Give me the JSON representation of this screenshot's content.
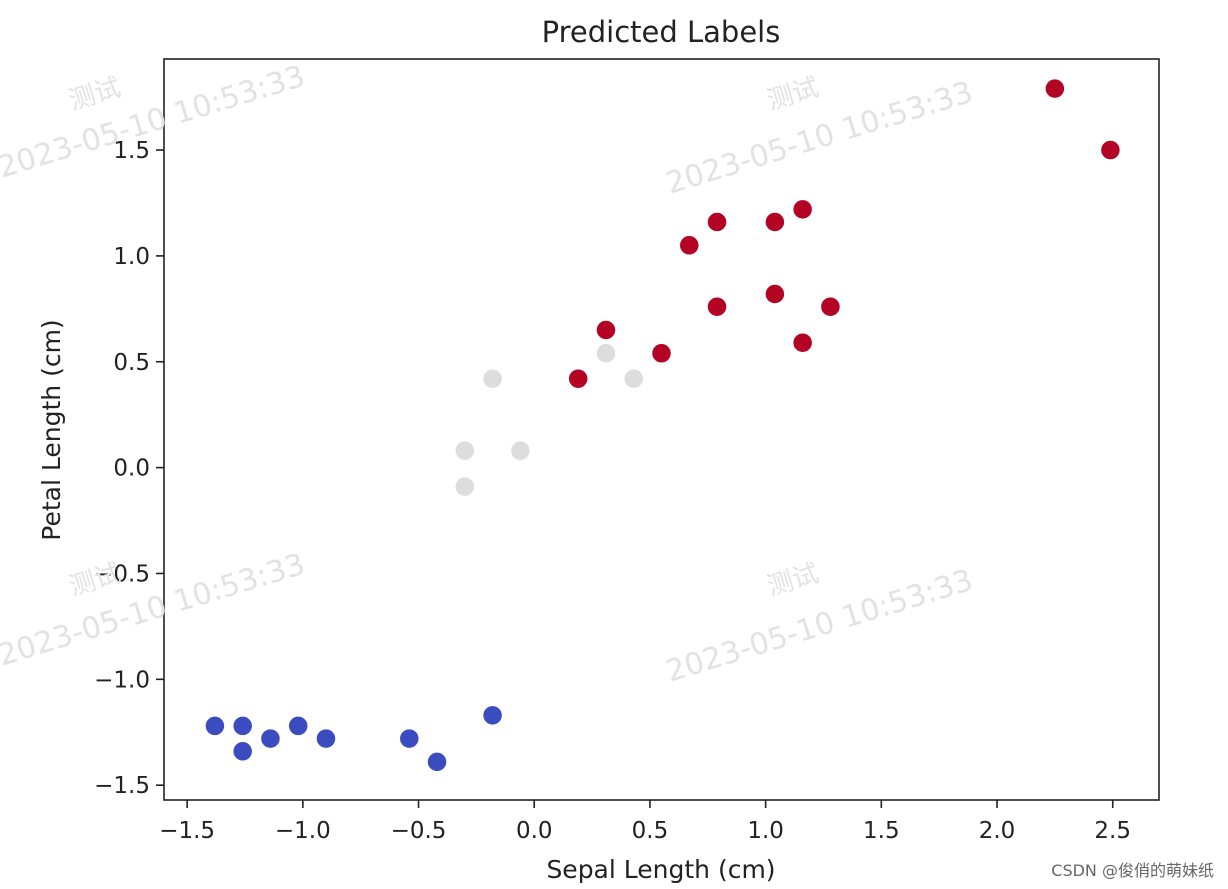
{
  "chart_data": {
    "type": "scatter",
    "title": "Predicted Labels",
    "xlabel": "Sepal Length (cm)",
    "ylabel": "Petal Length (cm)",
    "xlim": [
      -1.6,
      2.7
    ],
    "ylim": [
      -1.57,
      1.93
    ],
    "xticks": [
      -1.5,
      -1.0,
      -0.5,
      0.0,
      0.5,
      1.0,
      1.5,
      2.0,
      2.5
    ],
    "xtick_labels": [
      "−1.5",
      "−1.0",
      "−0.5",
      "0.0",
      "0.5",
      "1.0",
      "1.5",
      "2.0",
      "2.5"
    ],
    "yticks": [
      -1.5,
      -1.0,
      -0.5,
      0.0,
      0.5,
      1.0,
      1.5
    ],
    "ytick_labels": [
      "−1.5",
      "−1.0",
      "−0.5",
      "0.0",
      "0.5",
      "1.0",
      "1.5"
    ],
    "grid": false,
    "series": [
      {
        "color": "#3b4cc0",
        "points": [
          [
            -1.38,
            -1.22
          ],
          [
            -1.26,
            -1.22
          ],
          [
            -1.26,
            -1.34
          ],
          [
            -1.14,
            -1.28
          ],
          [
            -1.02,
            -1.22
          ],
          [
            -0.9,
            -1.28
          ],
          [
            -0.54,
            -1.28
          ],
          [
            -0.42,
            -1.39
          ],
          [
            -0.18,
            -1.17
          ]
        ]
      },
      {
        "color": "#dddddd",
        "points": [
          [
            -0.18,
            0.42
          ],
          [
            -0.3,
            0.08
          ],
          [
            -0.3,
            -0.09
          ],
          [
            -0.06,
            0.08
          ],
          [
            0.31,
            0.54
          ],
          [
            0.43,
            0.42
          ]
        ]
      },
      {
        "color": "#b40426",
        "points": [
          [
            0.19,
            0.42
          ],
          [
            0.31,
            0.65
          ],
          [
            0.55,
            0.54
          ],
          [
            0.67,
            1.05
          ],
          [
            0.79,
            1.16
          ],
          [
            0.79,
            0.76
          ],
          [
            1.04,
            1.16
          ],
          [
            1.04,
            0.82
          ],
          [
            1.16,
            1.22
          ],
          [
            1.16,
            0.59
          ],
          [
            1.28,
            0.76
          ],
          [
            2.25,
            1.79
          ],
          [
            2.49,
            1.5
          ]
        ]
      }
    ]
  },
  "watermark": {
    "label": "测试",
    "timestamp": "2023-05-10 10:53:33"
  },
  "credit": "CSDN @俊俏的萌妹纸"
}
